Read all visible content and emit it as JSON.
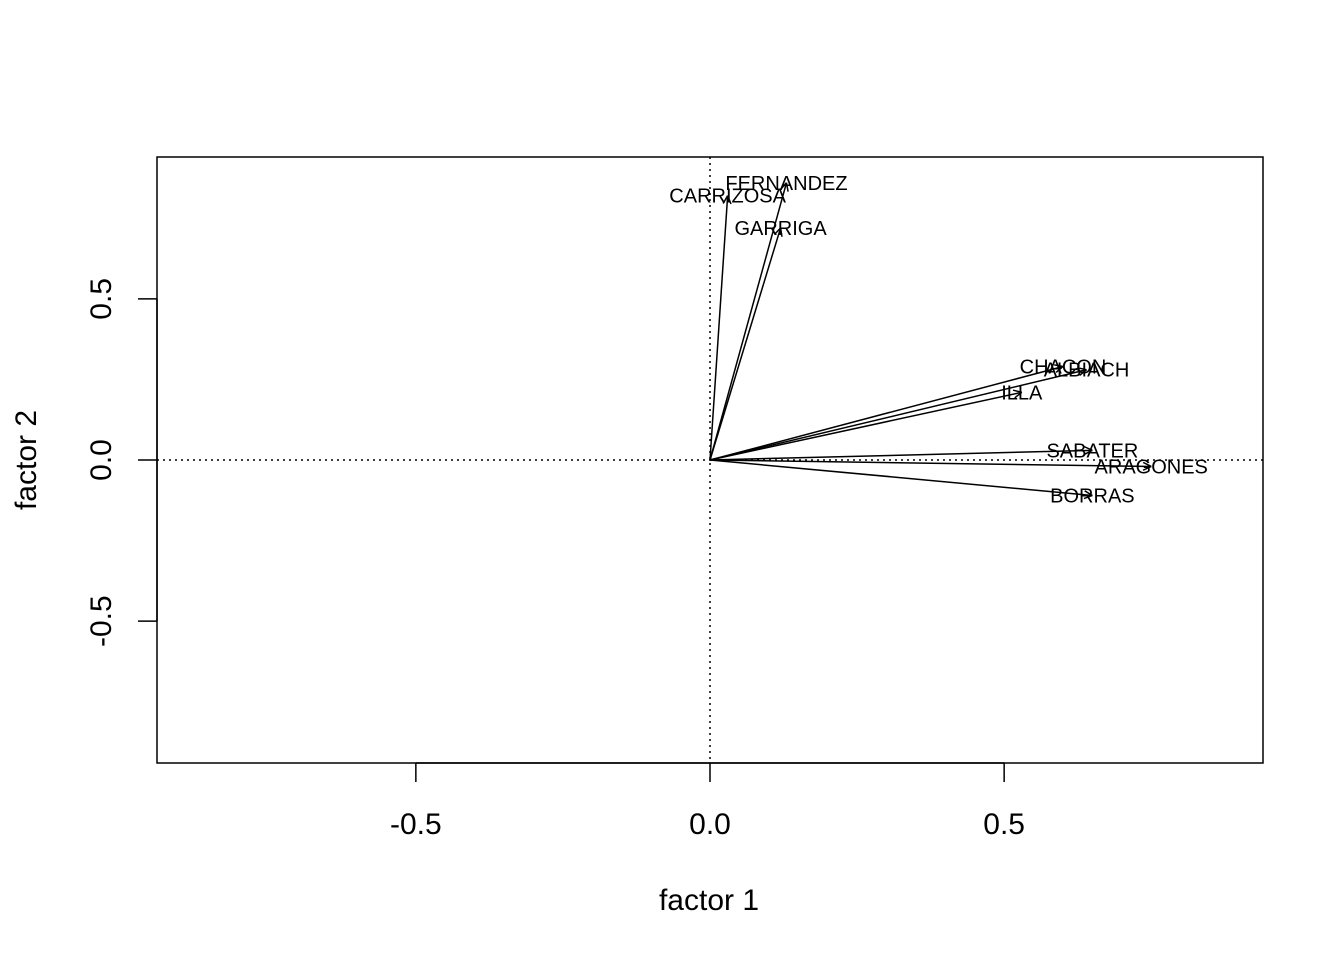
{
  "chart_data": {
    "type": "scatter",
    "xlabel": "factor 1",
    "ylabel": "factor 2",
    "xlim": [
      -0.94,
      0.94
    ],
    "ylim": [
      -0.94,
      0.94
    ],
    "x_ticks": [
      -0.5,
      0.0,
      0.5
    ],
    "y_ticks": [
      -0.5,
      0.0,
      0.5
    ],
    "x_tick_labels": [
      "-0.5",
      "0.0",
      "0.5"
    ],
    "y_tick_labels": [
      "-0.5",
      "0.0",
      "0.5"
    ],
    "reference_lines": {
      "x": 0,
      "y": 0,
      "style": "dotted"
    },
    "grid": false,
    "legend": "none",
    "points": [
      {
        "label": "FERNANDEZ",
        "x": 0.13,
        "y": 0.86
      },
      {
        "label": "CARRIZOSA",
        "x": 0.03,
        "y": 0.82
      },
      {
        "label": "GARRIGA",
        "x": 0.12,
        "y": 0.72
      },
      {
        "label": "CHACON",
        "x": 0.6,
        "y": 0.29
      },
      {
        "label": "ALBIACH",
        "x": 0.64,
        "y": 0.28
      },
      {
        "label": "ILLA",
        "x": 0.53,
        "y": 0.21
      },
      {
        "label": "SABATER",
        "x": 0.65,
        "y": 0.03
      },
      {
        "label": "ARAGONES",
        "x": 0.75,
        "y": -0.02
      },
      {
        "label": "BORRAS",
        "x": 0.65,
        "y": -0.11
      }
    ]
  }
}
